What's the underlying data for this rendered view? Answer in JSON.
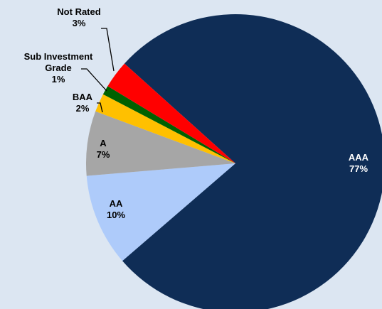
{
  "chart_data": {
    "type": "pie",
    "categories": [
      "AAA",
      "AA",
      "A",
      "BAA",
      "Sub Investment Grade",
      "Not Rated"
    ],
    "values": [
      77,
      10,
      7,
      2,
      1,
      3
    ],
    "value_labels": [
      "77%",
      "10%",
      "7%",
      "2%",
      "1%",
      "3%"
    ],
    "colors": [
      "#0f2d56",
      "#aecbfa",
      "#a6a6a6",
      "#ffc000",
      "#006100",
      "#ff0000"
    ]
  }
}
